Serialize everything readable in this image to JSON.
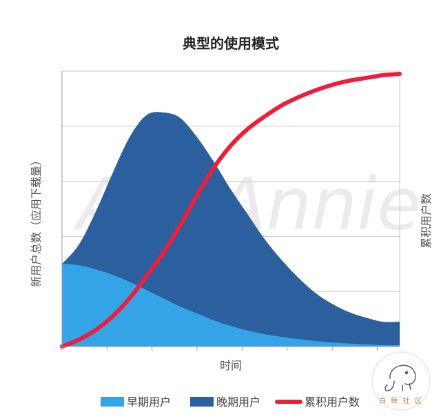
{
  "chart_data": {
    "type": "area",
    "title": "典型的使用模式",
    "xlabel": "时间",
    "ylabel_left": "新用户总数（应用下载量）",
    "ylabel_right": "累积用户数",
    "grid": "horizontal",
    "legend_position": "bottom",
    "x": [
      0,
      1,
      2,
      3,
      4,
      5,
      6,
      7,
      8,
      9,
      10,
      11,
      12,
      13,
      14,
      15,
      16,
      17,
      18,
      19,
      20
    ],
    "xlim": [
      0,
      20
    ],
    "ylim": [
      0,
      10
    ],
    "series": [
      {
        "name": "早期用户",
        "kind": "area",
        "color": "#35a4e6",
        "values": [
          3.0,
          2.95,
          2.8,
          2.6,
          2.35,
          2.05,
          1.75,
          1.45,
          1.2,
          0.95,
          0.75,
          0.58,
          0.45,
          0.35,
          0.27,
          0.2,
          0.15,
          0.11,
          0.08,
          0.05,
          0.05
        ]
      },
      {
        "name": "晚期用户",
        "kind": "area-stacked-total",
        "color": "#2b5f9e",
        "values": [
          3.0,
          3.7,
          4.9,
          6.3,
          7.6,
          8.4,
          8.5,
          8.3,
          7.6,
          6.7,
          5.7,
          4.8,
          3.9,
          3.15,
          2.5,
          1.95,
          1.55,
          1.25,
          1.05,
          0.9,
          0.9
        ]
      },
      {
        "name": "累积用户数",
        "kind": "line",
        "color": "#ef1d3a",
        "values": [
          0.0,
          0.25,
          0.6,
          1.1,
          1.75,
          2.55,
          3.4,
          4.4,
          5.5,
          6.5,
          7.3,
          7.9,
          8.35,
          8.75,
          9.05,
          9.3,
          9.5,
          9.65,
          9.75,
          9.85,
          9.9
        ]
      }
    ]
  },
  "watermark": "AppAnnie",
  "badge": {
    "icon": "elephant-icon",
    "text": "白 鲸 社 区"
  }
}
